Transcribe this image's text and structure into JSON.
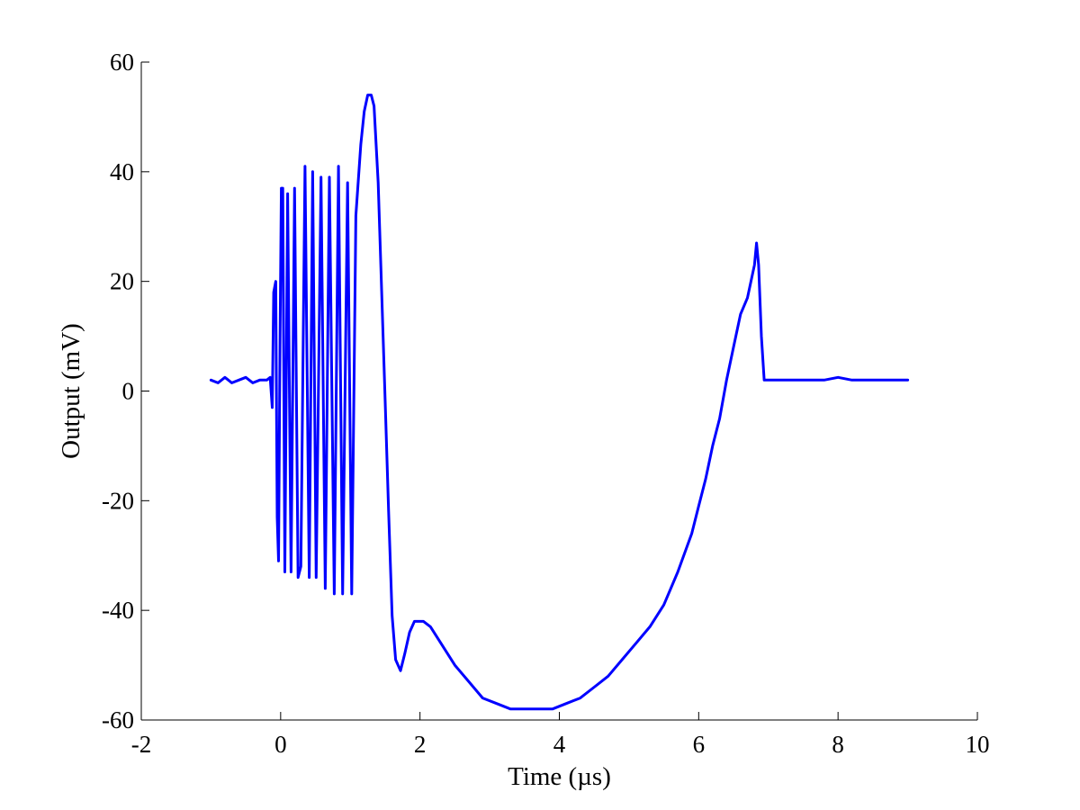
{
  "chart_data": {
    "type": "line",
    "title": "",
    "xlabel": "Time (µs)",
    "ylabel": "Output (mV)",
    "xlim": [
      -2,
      10
    ],
    "ylim": [
      -60,
      60
    ],
    "xticks": [
      -2,
      0,
      2,
      4,
      6,
      8,
      10
    ],
    "yticks": [
      -60,
      -40,
      -20,
      0,
      20,
      40,
      60
    ],
    "xtick_labels": [
      "-2",
      "0",
      "2",
      "4",
      "6",
      "8",
      "10"
    ],
    "ytick_labels": [
      "-60",
      "-40",
      "-20",
      "0",
      "20",
      "40",
      "60"
    ],
    "grid": false,
    "legend": "none",
    "series": [
      {
        "color": "#0000ff",
        "x": [
          -1.0,
          -0.9,
          -0.8,
          -0.7,
          -0.6,
          -0.5,
          -0.4,
          -0.3,
          -0.2,
          -0.15,
          -0.12,
          -0.1,
          -0.07,
          -0.05,
          -0.03,
          -0.01,
          0.01,
          0.03,
          0.06,
          0.1,
          0.15,
          0.2,
          0.25,
          0.29,
          0.35,
          0.41,
          0.46,
          0.51,
          0.58,
          0.64,
          0.7,
          0.77,
          0.83,
          0.89,
          0.96,
          1.02,
          1.08,
          1.15,
          1.2,
          1.25,
          1.3,
          1.34,
          1.4,
          1.45,
          1.5,
          1.55,
          1.6,
          1.65,
          1.72,
          1.78,
          1.85,
          1.92,
          1.98,
          2.05,
          2.15,
          2.3,
          2.5,
          2.7,
          2.9,
          3.1,
          3.3,
          3.5,
          3.7,
          3.9,
          4.1,
          4.3,
          4.5,
          4.7,
          4.9,
          5.1,
          5.3,
          5.5,
          5.7,
          5.9,
          6.0,
          6.1,
          6.2,
          6.3,
          6.4,
          6.5,
          6.6,
          6.7,
          6.75,
          6.8,
          6.83,
          6.86,
          6.9,
          6.94,
          6.98,
          7.05,
          7.2,
          7.4,
          7.6,
          7.8,
          8.0,
          8.2,
          8.4,
          8.6,
          8.8,
          9.0
        ],
        "y": [
          2,
          1.5,
          2.5,
          1.5,
          2,
          2.5,
          1.5,
          2,
          2,
          2.5,
          -3,
          18,
          20,
          -23,
          -31,
          8,
          37,
          37,
          -33,
          36,
          -33,
          37,
          -34,
          -32,
          41,
          -34,
          40,
          -34,
          39,
          -36,
          39,
          -37,
          41,
          -37,
          38,
          -37,
          32,
          45,
          51,
          54,
          54,
          52,
          38,
          18,
          -2,
          -22,
          -41,
          -49,
          -51,
          -48,
          -44,
          -42,
          -42,
          -42,
          -43,
          -46,
          -50,
          -53,
          -56,
          -57,
          -58,
          -58,
          -58,
          -58,
          -57,
          -56,
          -54,
          -52,
          -49,
          -46,
          -43,
          -39,
          -33,
          -26,
          -21,
          -16,
          -10,
          -5,
          2,
          8,
          14,
          17,
          20,
          23,
          27,
          23,
          10,
          2,
          2,
          2,
          2,
          2,
          2,
          2,
          2.5,
          2,
          2,
          2,
          2,
          2
        ]
      }
    ]
  }
}
